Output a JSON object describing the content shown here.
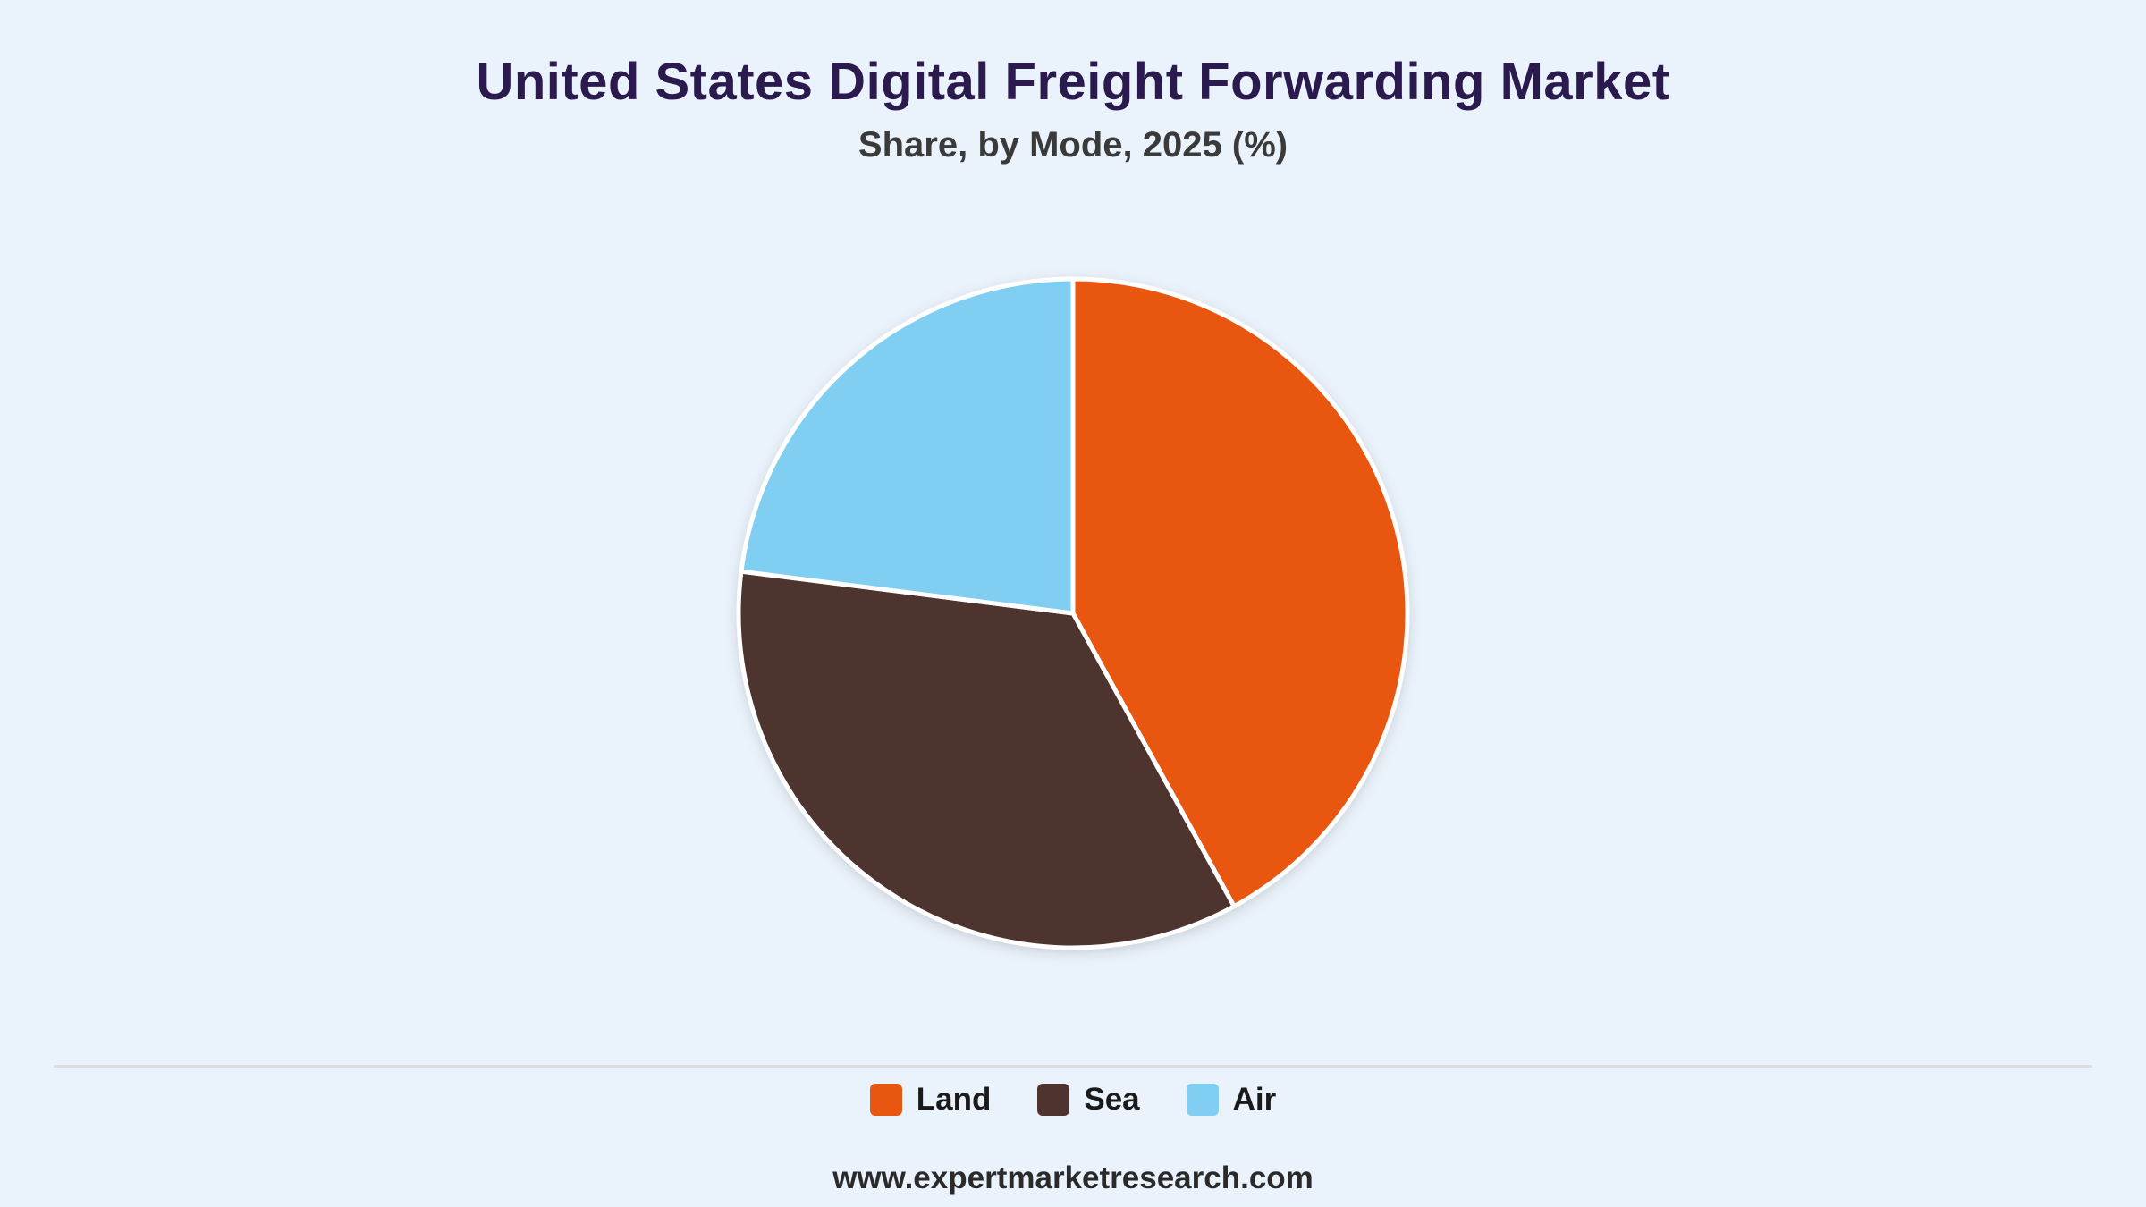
{
  "header": {
    "title": "United States Digital Freight Forwarding Market",
    "subtitle": "Share, by Mode, 2025 (%)"
  },
  "chart_data": {
    "type": "pie",
    "title": "United States Digital Freight Forwarding Market",
    "subtitle": "Share, by Mode, 2025 (%)",
    "categories": [
      "Land",
      "Sea",
      "Air"
    ],
    "values": [
      42,
      35,
      23
    ],
    "colors": [
      "#E8560F",
      "#4E342E",
      "#80CEF2"
    ],
    "start_angle": "12 o'clock",
    "direction": "clockwise",
    "legend_position": "bottom-center",
    "slice_border_color": "#FFFFFF"
  },
  "legend": {
    "items": [
      {
        "label": "Land",
        "color": "#E8560F"
      },
      {
        "label": "Sea",
        "color": "#4E342E"
      },
      {
        "label": "Air",
        "color": "#80CEF2"
      }
    ]
  },
  "footer": {
    "source": "www.expertmarketresearch.com"
  }
}
